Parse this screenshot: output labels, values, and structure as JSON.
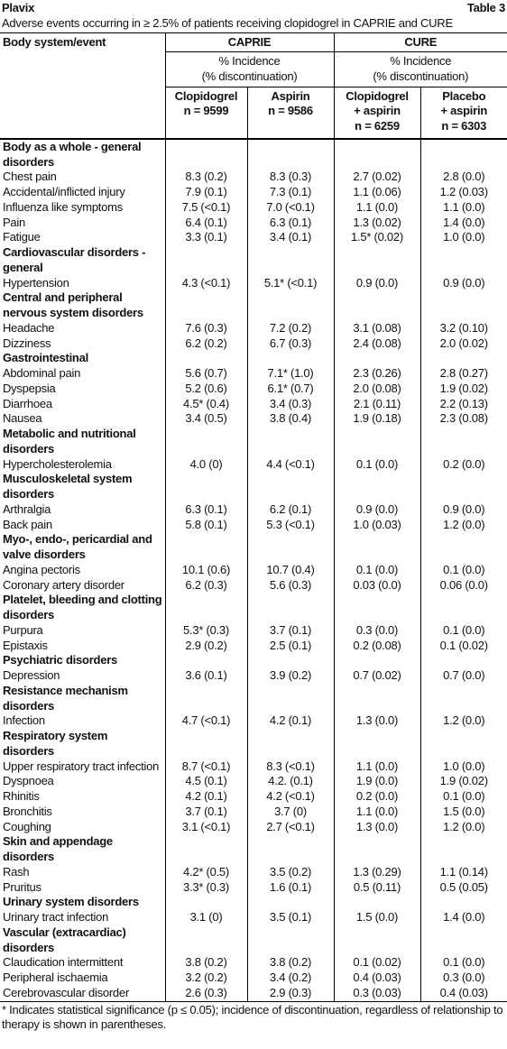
{
  "header": {
    "product": "Plavix",
    "table_no": "Table 3",
    "caption": "Adverse events occurring in ≥ 2.5% of patients receiving clopidogrel in CAPRIE and CURE"
  },
  "columns": {
    "event": "Body system/event",
    "studies": [
      "CAPRIE",
      "CURE"
    ],
    "measure": [
      "% Incidence",
      "(% discontinuation)"
    ],
    "arms": [
      [
        "Clopidogrel",
        "n = 9599"
      ],
      [
        "Aspirin",
        "n = 9586"
      ],
      [
        "Clopidogrel",
        "+ aspirin",
        "n = 6259"
      ],
      [
        "Placebo",
        "+ aspirin",
        "n = 6303"
      ]
    ]
  },
  "groups": [
    {
      "name": "Body as a whole - general disorders",
      "rows": [
        {
          "event": "Chest pain",
          "values": [
            "8.3 (0.2)",
            "8.3 (0.3)",
            "2.7 (0.02)",
            "2.8 (0.0)"
          ]
        },
        {
          "event": "Accidental/inflicted injury",
          "values": [
            "7.9 (0.1)",
            "7.3 (0.1)",
            "1.1 (0.06)",
            "1.2 (0.03)"
          ]
        },
        {
          "event": "Influenza like symptoms",
          "values": [
            "7.5 (<0.1)",
            "7.0 (<0.1)",
            "1.1 (0.0)",
            "1.1 (0.0)"
          ]
        },
        {
          "event": "Pain",
          "values": [
            "6.4 (0.1)",
            "6.3 (0.1)",
            "1.3 (0.02)",
            "1.4 (0.0)"
          ]
        },
        {
          "event": "Fatigue",
          "values": [
            "3.3 (0.1)",
            "3.4 (0.1)",
            "1.5* (0.02)",
            "1.0 (0.0)"
          ]
        }
      ]
    },
    {
      "name": "Cardiovascular disorders - general",
      "rows": [
        {
          "event": "Hypertension",
          "values": [
            "4.3 (<0.1)",
            "5.1* (<0.1)",
            "0.9 (0.0)",
            "0.9 (0.0)"
          ]
        }
      ]
    },
    {
      "name": "Central and peripheral nervous system disorders",
      "rows": [
        {
          "event": "Headache",
          "values": [
            "7.6 (0.3)",
            "7.2 (0.2)",
            "3.1 (0.08)",
            "3.2 (0.10)"
          ]
        },
        {
          "event": "Dizziness",
          "values": [
            "6.2 (0.2)",
            "6.7 (0.3)",
            "2.4 (0.08)",
            "2.0 (0.02)"
          ]
        }
      ]
    },
    {
      "name": "Gastrointestinal",
      "rows": [
        {
          "event": "Abdominal pain",
          "values": [
            "5.6 (0.7)",
            "7.1* (1.0)",
            "2.3 (0.26)",
            "2.8 (0.27)"
          ]
        },
        {
          "event": "Dyspepsia",
          "values": [
            "5.2 (0.6)",
            "6.1* (0.7)",
            "2.0 (0.08)",
            "1.9 (0.02)"
          ]
        },
        {
          "event": "Diarrhoea",
          "values": [
            "4.5* (0.4)",
            "3.4 (0.3)",
            "2.1 (0.11)",
            "2.2 (0.13)"
          ]
        },
        {
          "event": "Nausea",
          "values": [
            "3.4 (0.5)",
            "3.8 (0.4)",
            "1.9 (0.18)",
            "2.3 (0.08)"
          ]
        }
      ]
    },
    {
      "name": "Metabolic and nutritional disorders",
      "rows": [
        {
          "event": "Hypercholesterolemia",
          "values": [
            "4.0 (0)",
            "4.4 (<0.1)",
            "0.1 (0.0)",
            "0.2 (0.0)"
          ]
        }
      ]
    },
    {
      "name": "Musculoskeletal system disorders",
      "rows": [
        {
          "event": "Arthralgia",
          "values": [
            "6.3 (0.1)",
            "6.2 (0.1)",
            "0.9 (0.0)",
            "0.9 (0.0)"
          ]
        },
        {
          "event": "Back pain",
          "values": [
            "5.8 (0.1)",
            "5.3 (<0.1)",
            "1.0 (0.03)",
            "1.2 (0.0)"
          ]
        }
      ]
    },
    {
      "name": "Myo-, endo-, pericardial and valve disorders",
      "rows": [
        {
          "event": "Angina pectoris",
          "values": [
            "10.1 (0.6)",
            "10.7 (0.4)",
            "0.1 (0.0)",
            "0.1 (0.0)"
          ]
        },
        {
          "event": "Coronary artery disorder",
          "values": [
            "6.2 (0.3)",
            "5.6 (0.3)",
            "0.03 (0.0)",
            "0.06 (0.0)"
          ]
        }
      ]
    },
    {
      "name": "Platelet, bleeding and clotting disorders",
      "rows": [
        {
          "event": "Purpura",
          "values": [
            "5.3* (0.3)",
            "3.7 (0.1)",
            "0.3 (0.0)",
            "0.1 (0.0)"
          ]
        },
        {
          "event": "Epistaxis",
          "values": [
            "2.9 (0.2)",
            "2.5 (0.1)",
            "0.2 (0.08)",
            "0.1 (0.02)"
          ]
        }
      ]
    },
    {
      "name": "Psychiatric disorders",
      "rows": [
        {
          "event": "Depression",
          "values": [
            "3.6 (0.1)",
            "3.9 (0.2)",
            "0.7 (0.02)",
            "0.7 (0.0)"
          ]
        }
      ]
    },
    {
      "name": "Resistance mechanism disorders",
      "rows": [
        {
          "event": "Infection",
          "values": [
            "4.7 (<0.1)",
            "4.2 (0.1)",
            "1.3 (0.0)",
            "1.2 (0.0)"
          ]
        }
      ]
    },
    {
      "name": "Respiratory system disorders",
      "rows": [
        {
          "event": "Upper respiratory tract infection",
          "values": [
            "8.7 (<0.1)",
            "8.3 (<0.1)",
            "1.1 (0.0)",
            "1.0 (0.0)"
          ]
        },
        {
          "event": "Dyspnoea",
          "values": [
            "4.5 (0.1)",
            "4.2. (0.1)",
            "1.9 (0.0)",
            "1.9 (0.02)"
          ]
        },
        {
          "event": "Rhinitis",
          "values": [
            "4.2 (0.1)",
            "4.2 (<0.1)",
            "0.2 (0.0)",
            "0.1 (0.0)"
          ]
        },
        {
          "event": "Bronchitis",
          "values": [
            "3.7 (0.1)",
            "3.7 (0)",
            "1.1 (0.0)",
            "1.5 (0.0)"
          ]
        },
        {
          "event": "Coughing",
          "values": [
            "3.1 (<0.1)",
            "2.7 (<0.1)",
            "1.3 (0.0)",
            "1.2 (0.0)"
          ]
        }
      ]
    },
    {
      "name": "Skin and appendage disorders",
      "rows": [
        {
          "event": "Rash",
          "values": [
            "4.2* (0.5)",
            "3.5 (0.2)",
            "1.3 (0.29)",
            "1.1 (0.14)"
          ]
        },
        {
          "event": "Pruritus",
          "values": [
            "3.3* (0.3)",
            "1.6 (0.1)",
            "0.5 (0.11)",
            "0.5 (0.05)"
          ]
        }
      ]
    },
    {
      "name": "Urinary system disorders",
      "rows": [
        {
          "event": "Urinary tract infection",
          "values": [
            "3.1 (0)",
            "3.5 (0.1)",
            "1.5 (0.0)",
            "1.4 (0.0)"
          ]
        }
      ]
    },
    {
      "name": "Vascular (extracardiac) disorders",
      "rows": [
        {
          "event": "Claudication intermittent",
          "values": [
            "3.8 (0.2)",
            "3.8 (0.2)",
            "0.1 (0.02)",
            "0.1 (0.0)"
          ]
        },
        {
          "event": "Peripheral ischaemia",
          "values": [
            "3.2 (0.2)",
            "3.4 (0.2)",
            "0.4 (0.03)",
            "0.3 (0.0)"
          ]
        },
        {
          "event": "Cerebrovascular disorder",
          "values": [
            "2.6 (0.3)",
            "2.9 (0.3)",
            "0.3 (0.03)",
            "0.4 (0.03)"
          ]
        }
      ]
    }
  ],
  "footnote": "* Indicates statistical significance (p ≤ 0.05); incidence of discontinuation, regardless of relationship to therapy is shown in parentheses."
}
